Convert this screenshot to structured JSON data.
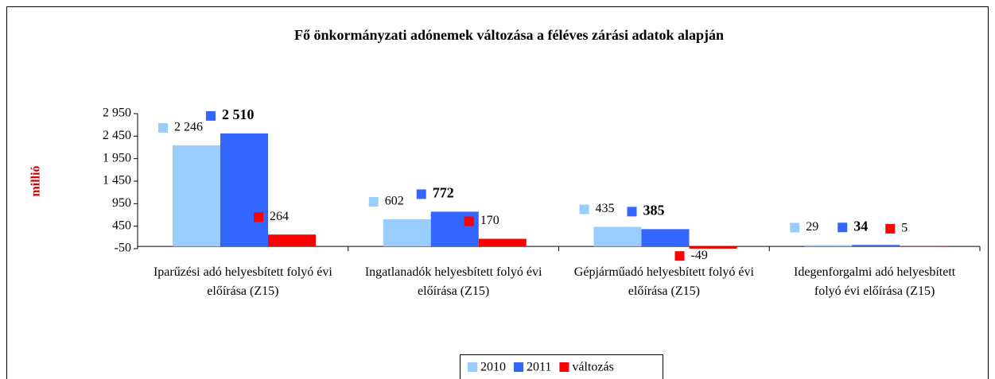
{
  "chart_data": {
    "type": "bar",
    "title": "Fő önkormányzati adónemek változása a féléves zárási adatok alapján",
    "y_label": "millió",
    "categories": [
      "Iparűzési adó helyesbített folyó évi előírása (Z15)",
      "Ingatlanadók helyesbített folyó évi előírása (Z15)",
      "Gépjárműadó helyesbített folyó évi előírása (Z15)",
      "Idegenforgalmi adó helyesbített folyó évi előírása (Z15)"
    ],
    "series": [
      {
        "name": "2010",
        "color": "#99ccff",
        "values": [
          2246,
          602,
          435,
          29
        ],
        "value_labels": [
          "2 246",
          "602",
          "435",
          "29"
        ]
      },
      {
        "name": "2011",
        "color": "#3366ff",
        "values": [
          2510,
          772,
          385,
          34
        ],
        "value_labels": [
          "2 510",
          "772",
          "385",
          "34"
        ]
      },
      {
        "name": "változás",
        "color": "#ff0000",
        "values": [
          264,
          170,
          -49,
          5
        ]
      }
    ],
    "ylim": [
      -50,
      2950
    ],
    "yticks": [
      -50,
      450,
      950,
      {
        "value": 1450,
        "label": "1 450"
      },
      {
        "value": 1950,
        "label": "1 950"
      },
      {
        "value": 2450,
        "label": "2 450"
      },
      {
        "value": 2950,
        "label": "2 950"
      }
    ],
    "legend": "bottom"
  }
}
